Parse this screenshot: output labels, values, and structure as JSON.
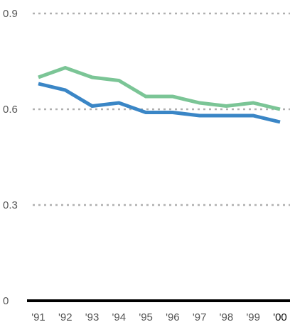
{
  "chart_data": {
    "type": "line",
    "x": [
      "'91",
      "'92",
      "'93",
      "'94",
      "'95",
      "'96",
      "'97",
      "'98",
      "'99",
      "'00"
    ],
    "series": [
      {
        "color": "#7bc596",
        "values": [
          0.7,
          0.73,
          0.7,
          0.69,
          0.64,
          0.64,
          0.62,
          0.61,
          0.62,
          0.6
        ]
      },
      {
        "color": "#3a86c6",
        "values": [
          0.68,
          0.66,
          0.61,
          0.62,
          0.59,
          0.59,
          0.58,
          0.58,
          0.58,
          0.56
        ]
      }
    ],
    "yticks": [
      0,
      0.3,
      0.6,
      0.9
    ],
    "ytick_labels": [
      "0",
      "0.3",
      "0.6",
      "0.9"
    ],
    "ylim": [
      0,
      0.9
    ],
    "grid": true,
    "grid_style": "dotted",
    "grid_color": "#b0b0b0",
    "axis_color": "#000000",
    "tick_label_color": "#555555",
    "last_tick_label_color": "#111111",
    "title": "",
    "xlabel": "",
    "ylabel": ""
  }
}
